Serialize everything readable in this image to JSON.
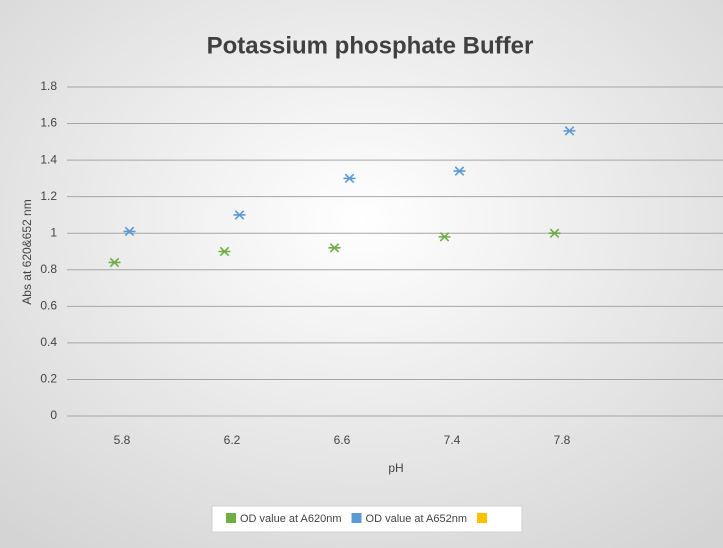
{
  "chart_data": {
    "type": "scatter",
    "title": "Potassium phosphate Buffer",
    "xlabel": "pH",
    "ylabel": "Abs at 620&652 nm",
    "categories": [
      "5.8",
      "6.2",
      "6.6",
      "7.4",
      "7.8",
      null
    ],
    "series": [
      {
        "name": "OD value at A620nm",
        "color": "#70ad47",
        "values": [
          0.84,
          0.9,
          0.92,
          0.98,
          1.0,
          null
        ]
      },
      {
        "name": "OD value at A652nm",
        "color": "#5b9bd5",
        "values": [
          1.01,
          1.1,
          1.3,
          1.34,
          1.56,
          null
        ]
      },
      {
        "name": null,
        "color": "#ffc000",
        "values": [
          null,
          null,
          null,
          null,
          null,
          null
        ]
      }
    ],
    "ylim": [
      0,
      1.8
    ],
    "yticks": [
      0,
      0.2,
      0.4,
      0.6,
      0.8,
      1,
      1.2,
      1.4,
      1.6,
      1.8
    ],
    "grid": true,
    "legend": "bottom"
  }
}
